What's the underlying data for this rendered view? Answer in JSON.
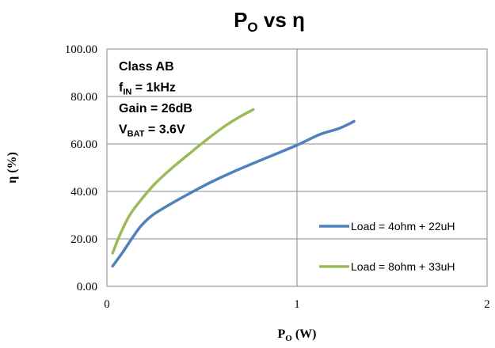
{
  "chart_data": {
    "type": "line",
    "title": {
      "main": "P",
      "sub": "O",
      "rest": " vs η"
    },
    "xlabel": {
      "main": "P",
      "sub": "O",
      "rest": " (W)"
    },
    "ylabel": "η (%)",
    "xlim": [
      0,
      2
    ],
    "ylim": [
      0,
      100
    ],
    "x_ticks": [
      "0",
      "1",
      "2"
    ],
    "x_tick_values": [
      0,
      1,
      2
    ],
    "y_ticks": [
      "0.00",
      "20.00",
      "40.00",
      "60.00",
      "80.00",
      "100.00"
    ],
    "y_tick_values": [
      0,
      20,
      40,
      60,
      80,
      100
    ],
    "grid": true,
    "legend_position": "bottom-right",
    "annotations": [
      {
        "main": "Class AB",
        "sub": "",
        "rest": ""
      },
      {
        "main": "f",
        "sub": "IN",
        "rest": " = 1kHz"
      },
      {
        "main": "Gain = 26dB",
        "sub": "",
        "rest": ""
      },
      {
        "main": "V",
        "sub": "BAT",
        "rest": " = 3.6V"
      }
    ],
    "series": [
      {
        "name": "Load = 4ohm + 22uH",
        "color": "#4F81BD",
        "x": [
          0.03,
          0.08,
          0.13,
          0.18,
          0.24,
          0.32,
          0.42,
          0.55,
          0.7,
          0.85,
          1.0,
          1.12,
          1.22,
          1.3
        ],
        "y": [
          8.5,
          14,
          20,
          25.5,
          30,
          34,
          38.5,
          44,
          49.5,
          54.5,
          59.5,
          64,
          66.5,
          69.5
        ]
      },
      {
        "name": "Load = 8ohm + 33uH",
        "color": "#9BBB59",
        "x": [
          0.03,
          0.07,
          0.12,
          0.18,
          0.25,
          0.33,
          0.42,
          0.52,
          0.62,
          0.7,
          0.77
        ],
        "y": [
          14,
          22,
          30,
          36.5,
          43,
          49,
          55,
          61.5,
          67.5,
          71.5,
          74.5
        ]
      }
    ]
  }
}
